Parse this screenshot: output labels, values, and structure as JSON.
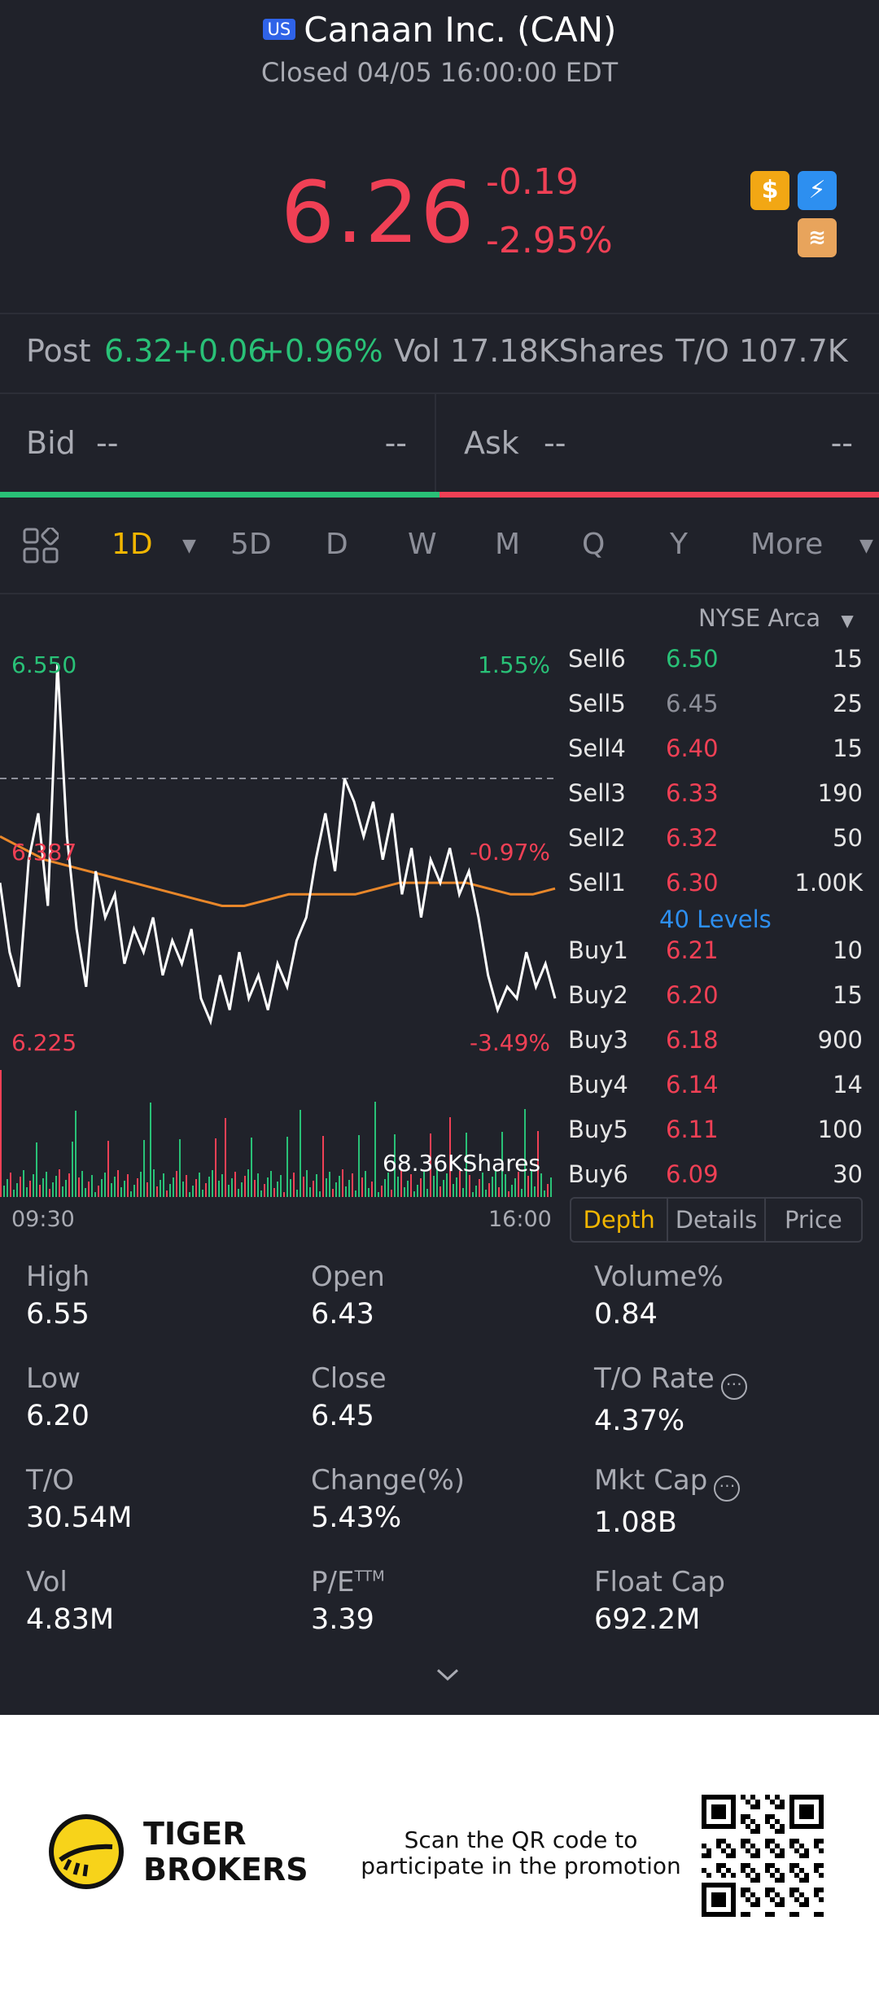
{
  "header": {
    "market_badge": "US",
    "title": "Canaan Inc. (CAN)",
    "status": "Closed 04/05 16:00:00 EDT"
  },
  "quote": {
    "price": "6.26",
    "change": "-0.19",
    "change_pct": "-2.95%"
  },
  "quick_icons": [
    "dollar-icon",
    "lightning-icon",
    "stack-icon"
  ],
  "post": {
    "label": "Post",
    "price": "6.32",
    "change": "+0.06",
    "change_pct": "+0.96%",
    "vol": "Vol 17.18KShares",
    "turnover": "T/O 107.7K"
  },
  "bidask": {
    "bid_label": "Bid",
    "bid_value": "--",
    "bid_qty": "--",
    "ask_label": "Ask",
    "ask_value": "--",
    "ask_qty": "--"
  },
  "tabs": {
    "items": [
      "1D",
      "5D",
      "D",
      "W",
      "M",
      "Q",
      "Y",
      "More"
    ],
    "active": "1D"
  },
  "chart": {
    "high_label": "6.550",
    "high_pct": "1.55%",
    "prev_label": "6.387",
    "prev_pct": "-0.97%",
    "low_label": "6.225",
    "low_pct": "-3.49%",
    "vol_label": "68.36KShares",
    "start_time": "09:30",
    "end_time": "16:00"
  },
  "chart_data": {
    "type": "line",
    "series": [
      {
        "values": [
          6.36,
          6.3,
          6.27,
          6.38,
          6.42,
          6.34,
          6.55,
          6.4,
          6.32,
          6.27,
          6.37,
          6.33,
          6.35,
          6.29,
          6.32,
          6.3,
          6.33,
          6.28,
          6.31,
          6.29,
          6.32,
          6.26,
          6.24,
          6.28,
          6.25,
          6.3,
          6.26,
          6.28,
          6.25,
          6.29,
          6.27,
          6.31,
          6.33,
          6.38,
          6.42,
          6.37,
          6.45,
          6.43,
          6.4,
          6.43,
          6.38,
          6.42,
          6.35,
          6.39,
          6.33,
          6.38,
          6.36,
          6.39,
          6.35,
          6.37,
          6.33,
          6.28,
          6.25,
          6.27,
          6.26,
          6.3,
          6.27,
          6.29,
          6.26
        ]
      },
      {
        "values": [
          6.4,
          6.39,
          6.38,
          6.375,
          6.37,
          6.365,
          6.36,
          6.355,
          6.35,
          6.345,
          6.34,
          6.34,
          6.345,
          6.35,
          6.35,
          6.35,
          6.35,
          6.355,
          6.36,
          6.36,
          6.36,
          6.36,
          6.355,
          6.35,
          6.35,
          6.355
        ]
      }
    ],
    "ylim": [
      6.215,
      6.56
    ],
    "reference": 6.45
  },
  "orderbook": {
    "exchange": "NYSE Arca",
    "sells": [
      {
        "label": "Sell6",
        "price": "6.50",
        "qty": "15",
        "color": "#29c177"
      },
      {
        "label": "Sell5",
        "price": "6.45",
        "qty": "25",
        "color": "#8d8f99"
      },
      {
        "label": "Sell4",
        "price": "6.40",
        "qty": "15",
        "color": "#f04055"
      },
      {
        "label": "Sell3",
        "price": "6.33",
        "qty": "190",
        "color": "#f04055"
      },
      {
        "label": "Sell2",
        "price": "6.32",
        "qty": "50",
        "color": "#f04055"
      },
      {
        "label": "Sell1",
        "price": "6.30",
        "qty": "1.00K",
        "color": "#f04055"
      }
    ],
    "levels": "40 Levels",
    "buys": [
      {
        "label": "Buy1",
        "price": "6.21",
        "qty": "10",
        "color": "#f04055"
      },
      {
        "label": "Buy2",
        "price": "6.20",
        "qty": "15",
        "color": "#f04055"
      },
      {
        "label": "Buy3",
        "price": "6.18",
        "qty": "900",
        "color": "#f04055"
      },
      {
        "label": "Buy4",
        "price": "6.14",
        "qty": "14",
        "color": "#f04055"
      },
      {
        "label": "Buy5",
        "price": "6.11",
        "qty": "100",
        "color": "#f04055"
      },
      {
        "label": "Buy6",
        "price": "6.09",
        "qty": "30",
        "color": "#f04055"
      }
    ],
    "segments": [
      "Depth",
      "Details",
      "Price"
    ]
  },
  "stats": [
    {
      "label": "High",
      "value": "6.55"
    },
    {
      "label": "Open",
      "value": "6.43"
    },
    {
      "label": "Volume%",
      "value": "0.84"
    },
    {
      "label": "Low",
      "value": "6.20"
    },
    {
      "label": "Close",
      "value": "6.45"
    },
    {
      "label": "T/O Rate",
      "value": "4.37%",
      "info": true
    },
    {
      "label": "T/O",
      "value": "30.54M"
    },
    {
      "label": "Change(%)",
      "value": "5.43%"
    },
    {
      "label": "Mkt Cap",
      "value": "1.08B",
      "info": true
    },
    {
      "label": "Vol",
      "value": "4.83M"
    },
    {
      "label": "P/E",
      "sup": "TTM",
      "value": "3.39"
    },
    {
      "label": "Float Cap",
      "value": "692.2M"
    }
  ],
  "footer": {
    "brand_line1": "TIGER",
    "brand_line2": "BROKERS",
    "promo_line1": "Scan the QR code to",
    "promo_line2": "participate in the promotion"
  }
}
